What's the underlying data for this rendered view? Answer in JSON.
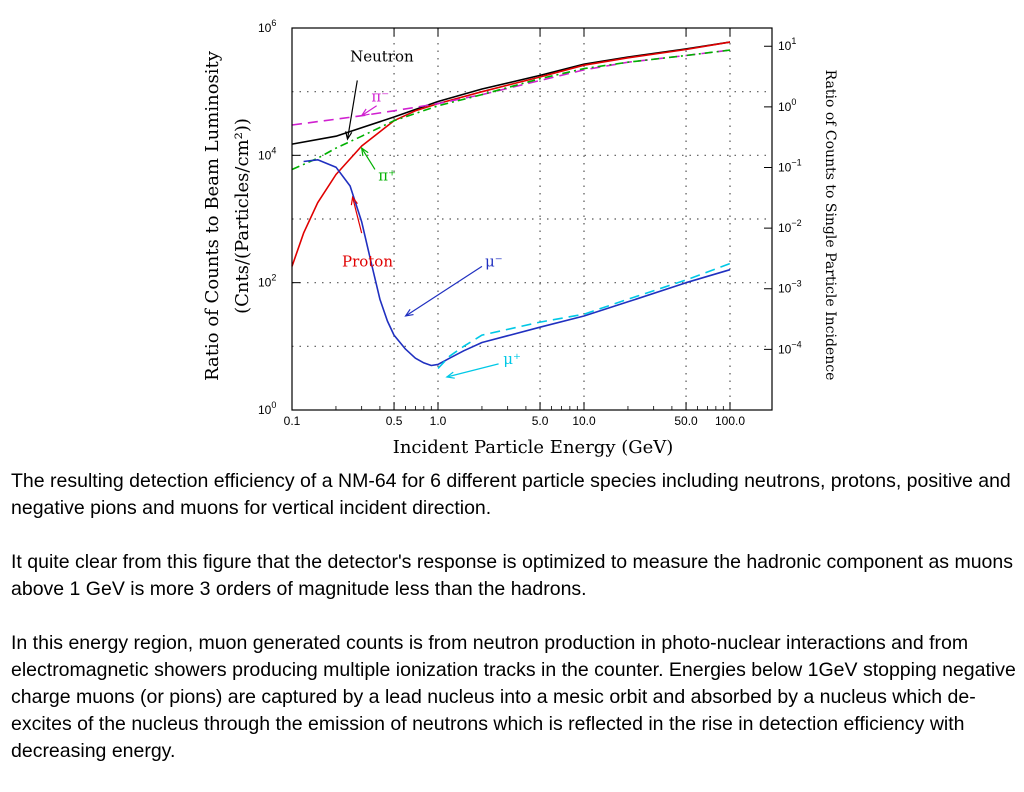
{
  "chart_data": {
    "type": "line",
    "x_scale": "log",
    "y_scale": "log",
    "xlim": [
      0.1,
      150
    ],
    "ylim": [
      1,
      1000000
    ],
    "y2lim": [
      1e-05,
      20
    ],
    "xlabel": "Incident Particle Energy (GeV)",
    "ylabel_line1": "Ratio of Counts to Beam Luminosity",
    "ylabel_line2": "(Cnts/(Particles/cm²))",
    "y2label": "Ratio of Counts to Single Particle Incidence",
    "x_ticks": [
      {
        "v": 0.1,
        "label": "0.1"
      },
      {
        "v": 0.5,
        "label": "0.5"
      },
      {
        "v": 1,
        "label": "1.0"
      },
      {
        "v": 5,
        "label": "5.0"
      },
      {
        "v": 10,
        "label": "10.0"
      },
      {
        "v": 50,
        "label": "50.0"
      },
      {
        "v": 100,
        "label": "100.0"
      }
    ],
    "y_ticks": [
      {
        "v": 1,
        "base": "10",
        "exp": "0"
      },
      {
        "v": 100,
        "base": "10",
        "exp": "2"
      },
      {
        "v": 10000,
        "base": "10",
        "exp": "4"
      },
      {
        "v": 1000000,
        "base": "10",
        "exp": "6"
      }
    ],
    "y2_ticks": [
      {
        "v": 10,
        "base": "10",
        "exp": "1"
      },
      {
        "v": 1,
        "base": "10",
        "exp": "0"
      },
      {
        "v": 0.1,
        "base": "10",
        "exp": "−1"
      },
      {
        "v": 0.01,
        "base": "10",
        "exp": "−2"
      },
      {
        "v": 0.001,
        "base": "10",
        "exp": "−3"
      },
      {
        "v": 0.0001,
        "base": "10",
        "exp": "−4"
      }
    ],
    "grid": true,
    "series": [
      {
        "name": "Neutron",
        "color": "#000000",
        "dash": "",
        "x": [
          0.1,
          0.2,
          0.5,
          1,
          2,
          5,
          10,
          20,
          50,
          100
        ],
        "y": [
          15000,
          20000,
          40000,
          70000,
          110000,
          180000,
          270000,
          350000,
          470000,
          600000
        ]
      },
      {
        "name": "Proton",
        "color": "#e00000",
        "dash": "",
        "x": [
          0.1,
          0.12,
          0.15,
          0.2,
          0.3,
          0.5,
          0.7,
          1,
          2,
          5,
          10,
          20,
          50,
          100
        ],
        "y": [
          180,
          600,
          1800,
          5000,
          14000,
          35000,
          50000,
          65000,
          100000,
          170000,
          260000,
          340000,
          460000,
          600000
        ]
      },
      {
        "name": "π⁻",
        "color": "#d020d0",
        "dash": "10,6",
        "x": [
          0.1,
          0.2,
          0.3,
          0.5,
          1,
          2,
          5,
          10,
          20,
          50,
          100
        ],
        "y": [
          30000,
          37000,
          42000,
          50000,
          65000,
          90000,
          150000,
          220000,
          290000,
          370000,
          450000
        ]
      },
      {
        "name": "π⁺",
        "color": "#00b000",
        "dash": "8,4,2,4",
        "x": [
          0.1,
          0.15,
          0.2,
          0.3,
          0.5,
          1,
          2,
          5,
          10,
          20,
          50,
          100
        ],
        "y": [
          6000,
          9000,
          13000,
          20000,
          35000,
          60000,
          90000,
          160000,
          230000,
          290000,
          370000,
          450000
        ]
      },
      {
        "name": "μ⁻",
        "color": "#2030c0",
        "dash": "",
        "x": [
          0.12,
          0.15,
          0.2,
          0.25,
          0.3,
          0.35,
          0.4,
          0.45,
          0.5,
          0.6,
          0.7,
          0.8,
          0.9,
          1,
          1.2,
          1.5,
          2,
          5,
          10,
          20,
          50,
          100
        ],
        "y": [
          8000,
          8500,
          6500,
          3300,
          900,
          200,
          55,
          25,
          15,
          9,
          6.5,
          5.5,
          5,
          5.2,
          6.5,
          8.5,
          11.5,
          20,
          30,
          50,
          100,
          160
        ]
      },
      {
        "name": "μ⁺",
        "color": "#00c8e6",
        "dash": "10,6",
        "x": [
          1,
          1.2,
          1.5,
          2,
          5,
          10,
          20,
          50,
          100
        ],
        "y": [
          4.5,
          7,
          10,
          15,
          24,
          32,
          55,
          110,
          200
        ]
      }
    ],
    "annotations": [
      {
        "text": "Neutron",
        "color": "#000000",
        "x": 0.25,
        "y": 300000,
        "ax": [
          0.28,
          150000
        ],
        "bx": [
          0.24,
          18000
        ]
      },
      {
        "text": "π⁻",
        "color": "#d020d0",
        "x": 0.35,
        "y": 70000,
        "ax": [
          0.38,
          60000
        ],
        "bx": [
          0.3,
          42000
        ]
      },
      {
        "text": "π⁺",
        "color": "#00b000",
        "x": 0.39,
        "y": 4000,
        "ax": [
          0.37,
          6000
        ],
        "bx": [
          0.3,
          13000
        ]
      },
      {
        "text": "Proton",
        "color": "#e00000",
        "x": 0.22,
        "y": 180,
        "ax": [
          0.3,
          600
        ],
        "bx": [
          0.26,
          2200
        ]
      },
      {
        "text": "μ⁻",
        "color": "#2030c0",
        "x": 2.1,
        "y": 180,
        "ax": [
          2.0,
          180
        ],
        "bx": [
          0.6,
          30
        ]
      },
      {
        "text": "μ⁺",
        "color": "#00c8e6",
        "x": 2.8,
        "y": 5.3,
        "ax": [
          2.6,
          5.3
        ],
        "bx": [
          1.15,
          3.3
        ]
      }
    ]
  },
  "caption": {
    "p1": "The resulting detection efficiency of a NM-64 for 6 different particle species including neutrons, protons, positive and negative pions and muons for vertical incident direction.",
    "p2": "It quite clear from this figure that the detector's response is optimized to measure the hadronic component as muons above 1 GeV is more 3 orders of magnitude less than the hadrons.",
    "p3": "In this energy region, muon generated counts is from neutron production in photo-nuclear interactions and from electromagnetic showers producing multiple ionization tracks in the counter. Energies below 1GeV stopping negative charge muons (or pions) are captured by a lead nucleus into a mesic orbit and absorbed by a nucleus which de-excites of the nucleus through the emission of neutrons which is reflected in the rise in detection efficiency with decreasing energy."
  }
}
